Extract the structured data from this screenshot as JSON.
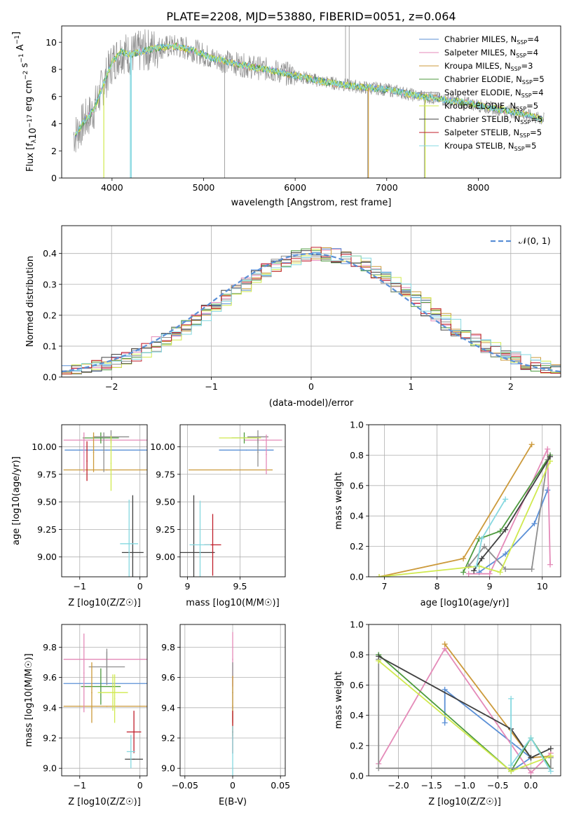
{
  "figure_title": "PLATE=2208, MJD=53880, FIBERID=0051, z=0.064",
  "series_colors": [
    "#5a8fd6",
    "#e48ab8",
    "#cc9a3b",
    "#4d9a3e",
    "#8e8e8e",
    "#d0e94e",
    "#404040",
    "#c01e2a",
    "#86d8e0"
  ],
  "legend_colors": [
    "#5a8fd6",
    "#e48ab8",
    "#cc9a3b",
    "#4d9a3e",
    "#8e8e8e",
    "#d0e94e",
    "#404040",
    "#c01e2a",
    "#86d8e0"
  ],
  "chart_data": [
    {
      "type": "line",
      "title": "PLATE=2208, MJD=53880, FIBERID=0051, z=0.064",
      "xlabel": "wavelength [Angstrom, rest frame]",
      "ylabel": "Flux [f_λ 10^-17 erg cm^-2 s^-1 A^-1]",
      "xlim": [
        3450,
        8900
      ],
      "ylim": [
        0,
        11.2
      ],
      "xticks": [
        4000,
        5000,
        6000,
        7000,
        8000
      ],
      "yticks": [
        0,
        2,
        4,
        6,
        8,
        10
      ],
      "grid": false,
      "legend_position": "top-right",
      "legend": [
        {
          "name": "Chabrier MILES, N",
          "sub": "SSP",
          "tail": "=4"
        },
        {
          "name": "Salpeter MILES, N",
          "sub": "SSP",
          "tail": "=4"
        },
        {
          "name": "Kroupa MILES, N",
          "sub": "SSP",
          "tail": "=3"
        },
        {
          "name": "Chabrier ELODIE, N",
          "sub": "SSP",
          "tail": "=5"
        },
        {
          "name": "Salpeter ELODIE, N",
          "sub": "SSP",
          "tail": "=4"
        },
        {
          "name": "Kroupa ELODIE, N",
          "sub": "SSP",
          "tail": "=5"
        },
        {
          "name": "Chabrier STELIB, N",
          "sub": "SSP",
          "tail": "=5"
        },
        {
          "name": "Salpeter STELIB, N",
          "sub": "SSP",
          "tail": "=5"
        },
        {
          "name": "Kroupa STELIB, N",
          "sub": "SSP",
          "tail": "=5"
        }
      ],
      "model_flux": {
        "x": [
          3600,
          3700,
          3800,
          3900,
          4000,
          4100,
          4200,
          4300,
          4500,
          4700,
          4900,
          5100,
          5300,
          5500,
          5700,
          5900,
          6100,
          6300,
          6500,
          6700,
          6900,
          7100,
          7300,
          7500,
          7700,
          7900,
          8100,
          8300,
          8500,
          8700
        ],
        "y": [
          3.2,
          4.2,
          5.0,
          6.8,
          8.5,
          9.3,
          9.1,
          9.3,
          9.6,
          9.7,
          9.4,
          8.8,
          8.5,
          8.2,
          8.0,
          7.7,
          7.4,
          7.1,
          6.9,
          6.7,
          6.6,
          6.4,
          6.1,
          5.9,
          5.7,
          5.5,
          5.2,
          5.0,
          4.7,
          4.3
        ]
      }
    },
    {
      "type": "line",
      "xlabel": "(data-model)/error",
      "ylabel": "Normed distribution",
      "xlim": [
        -2.5,
        2.5
      ],
      "ylim": [
        0,
        0.49
      ],
      "xticks": [
        -2,
        -1,
        0,
        1,
        2
      ],
      "yticks": [
        0.0,
        0.1,
        0.2,
        0.3,
        0.4
      ],
      "grid": true,
      "legend_position": "top-right",
      "reference_curve": {
        "name": "N(0,1)",
        "label_prefix": "𝒩(0, 1)"
      },
      "histogram_bin_width": 0.1
    },
    {
      "type": "scatter",
      "xlabel": "Z [log10(Z/Z☉)]",
      "ylabel": "age [log10(age/yr)]",
      "xlim": [
        -1.3,
        0.12
      ],
      "ylim": [
        8.82,
        10.2
      ],
      "xticks": [
        -1,
        0
      ],
      "yticks": [
        9.0,
        9.25,
        9.5,
        9.75,
        10.0
      ],
      "grid": true,
      "points": [
        {
          "x": -0.55,
          "xerr": 0.7,
          "y": 9.97,
          "yerr": 0.0,
          "series": 0
        },
        {
          "x": -0.55,
          "xerr": 0.72,
          "y": 10.06,
          "yerr": 0.0,
          "series": 1
        },
        {
          "x": -0.55,
          "xerr": 0.72,
          "y": 9.79,
          "yerr": 0.0,
          "series": 2
        },
        {
          "x": -0.65,
          "xerr": 0.3,
          "y": 10.08,
          "yerr": 0.05,
          "series": 3
        },
        {
          "x": -0.48,
          "xerr": 0.3,
          "y": 10.09,
          "yerr": 0.06,
          "series": 4
        },
        {
          "x": -0.48,
          "xerr": 0.0,
          "y": 9.85,
          "yerr": 0.25,
          "series": 5
        },
        {
          "x": -0.12,
          "xerr": 0.18,
          "y": 9.04,
          "yerr": 0.52,
          "series": 6
        },
        {
          "x": -0.88,
          "xerr": 0.0,
          "y": 9.87,
          "yerr": 0.18,
          "series": 7
        },
        {
          "x": -0.18,
          "xerr": 0.15,
          "y": 9.12,
          "yerr": 0.4,
          "series": 8
        },
        {
          "x": -0.6,
          "xerr": 0.0,
          "y": 9.95,
          "yerr": 0.18,
          "series": 4
        },
        {
          "x": -0.77,
          "xerr": 0.0,
          "y": 9.95,
          "yerr": 0.18,
          "series": 2
        },
        {
          "x": -0.93,
          "xerr": 0.0,
          "y": 9.95,
          "yerr": 0.18,
          "series": 1
        }
      ]
    },
    {
      "type": "scatter",
      "xlabel": "mass [log10(M/M☉)]",
      "xlim": [
        8.93,
        9.93
      ],
      "ylim": [
        8.82,
        10.2
      ],
      "xticks": [
        9.0,
        9.5
      ],
      "yticks": [
        9.0,
        9.25,
        9.5,
        9.75,
        10.0
      ],
      "grid": true,
      "points": [
        {
          "x": 9.56,
          "xerr": 0.26,
          "y": 9.97,
          "yerr": 0.0,
          "series": 0
        },
        {
          "x": 9.72,
          "xerr": 0.18,
          "y": 10.06,
          "yerr": 0.0,
          "series": 1
        },
        {
          "x": 9.41,
          "xerr": 0.4,
          "y": 9.79,
          "yerr": 0.0,
          "series": 2
        },
        {
          "x": 9.54,
          "xerr": 0.12,
          "y": 10.08,
          "yerr": 0.05,
          "series": 3
        },
        {
          "x": 9.67,
          "xerr": 0.1,
          "y": 10.09,
          "yerr": 0.06,
          "series": 4
        },
        {
          "x": 9.5,
          "xerr": 0.2,
          "y": 10.08,
          "yerr": 0.0,
          "series": 5
        },
        {
          "x": 9.06,
          "xerr": 0.2,
          "y": 9.04,
          "yerr": 0.52,
          "series": 6
        },
        {
          "x": 9.24,
          "xerr": 0.08,
          "y": 9.11,
          "yerr": 0.28,
          "series": 7
        },
        {
          "x": 9.12,
          "xerr": 0.1,
          "y": 9.11,
          "yerr": 0.4,
          "series": 8
        },
        {
          "x": 9.75,
          "xerr": 0.0,
          "y": 9.93,
          "yerr": 0.18,
          "series": 1
        },
        {
          "x": 9.67,
          "xerr": 0.0,
          "y": 9.95,
          "yerr": 0.13,
          "series": 4
        }
      ]
    },
    {
      "type": "line",
      "xlabel": "age [log10(age/yr)]",
      "ylabel": "mass weight",
      "xlim": [
        6.7,
        10.35
      ],
      "ylim": [
        0,
        1
      ],
      "xticks": [
        7,
        8,
        9,
        10
      ],
      "yticks": [
        0.0,
        0.2,
        0.4,
        0.6,
        0.8,
        1.0
      ],
      "grid": true,
      "series": [
        {
          "series": 0,
          "x": [
            8.8,
            9.3,
            9.85,
            10.1
          ],
          "y": [
            0.03,
            0.15,
            0.35,
            0.57
          ]
        },
        {
          "series": 1,
          "x": [
            8.6,
            9.0,
            10.1,
            10.15
          ],
          "y": [
            0.02,
            0.02,
            0.84,
            0.08
          ]
        },
        {
          "series": 2,
          "x": [
            6.9,
            8.5,
            9.8
          ],
          "y": [
            0.0,
            0.12,
            0.87
          ]
        },
        {
          "series": 3,
          "x": [
            8.5,
            8.8,
            9.2,
            10.15
          ],
          "y": [
            0.03,
            0.25,
            0.3,
            0.8
          ]
        },
        {
          "series": 4,
          "x": [
            8.6,
            8.9,
            9.3,
            9.8,
            10.1
          ],
          "y": [
            0.07,
            0.2,
            0.05,
            0.05,
            0.77
          ]
        },
        {
          "series": 5,
          "x": [
            6.9,
            8.8,
            9.2,
            10.15
          ],
          "y": [
            0.0,
            0.07,
            0.03,
            0.76
          ]
        },
        {
          "series": 6,
          "x": [
            8.7,
            8.85,
            9.3,
            10.15
          ],
          "y": [
            0.04,
            0.12,
            0.31,
            0.79
          ]
        },
        {
          "series": 8,
          "x": [
            8.75,
            8.85,
            9.3
          ],
          "y": [
            0.07,
            0.25,
            0.51
          ]
        }
      ]
    },
    {
      "type": "scatter",
      "xlabel": "Z [log10(Z/Z☉)]",
      "ylabel": "mass [log10(M/M☉)]",
      "xlim": [
        -1.3,
        0.12
      ],
      "ylim": [
        8.95,
        9.95
      ],
      "xticks": [
        -1,
        0
      ],
      "yticks": [
        9.0,
        9.2,
        9.4,
        9.6,
        9.8
      ],
      "grid": true,
      "points": [
        {
          "x": -0.55,
          "xerr": 0.72,
          "y": 9.56,
          "yerr": 0.0,
          "series": 0
        },
        {
          "x": -0.55,
          "xerr": 0.72,
          "y": 9.72,
          "yerr": 0.0,
          "series": 1
        },
        {
          "x": -0.55,
          "xerr": 0.72,
          "y": 9.41,
          "yerr": 0.0,
          "series": 2
        },
        {
          "x": -0.65,
          "xerr": 0.33,
          "y": 9.54,
          "yerr": 0.12,
          "series": 3
        },
        {
          "x": -0.55,
          "xerr": 0.3,
          "y": 9.67,
          "yerr": 0.1,
          "series": 4
        },
        {
          "x": -0.45,
          "xerr": 0.25,
          "y": 9.5,
          "yerr": 0.12,
          "series": 5
        },
        {
          "x": -0.1,
          "xerr": 0.15,
          "y": 9.06,
          "yerr": 0.0,
          "series": 6
        },
        {
          "x": -0.1,
          "xerr": 0.12,
          "y": 9.24,
          "yerr": 0.14,
          "series": 7
        },
        {
          "x": -0.15,
          "xerr": 0.07,
          "y": 9.11,
          "yerr": 0.11,
          "series": 8
        },
        {
          "x": -0.93,
          "xerr": 0.0,
          "y": 9.63,
          "yerr": 0.26,
          "series": 1
        },
        {
          "x": -0.8,
          "xerr": 0.0,
          "y": 9.5,
          "yerr": 0.2,
          "series": 2
        },
        {
          "x": -0.55,
          "xerr": 0.0,
          "y": 9.67,
          "yerr": 0.12,
          "series": 4
        },
        {
          "x": -0.42,
          "xerr": 0.0,
          "y": 9.46,
          "yerr": 0.16,
          "series": 5
        }
      ]
    },
    {
      "type": "scatter",
      "xlabel": "E(B-V)",
      "xlim": [
        -0.055,
        0.055
      ],
      "ylim": [
        8.95,
        9.95
      ],
      "xticks": [
        -0.05,
        0.0,
        0.05
      ],
      "yticks": [
        9.0,
        9.2,
        9.4,
        9.6,
        9.8
      ],
      "grid": true,
      "points": [
        {
          "x": 0.0,
          "xerr": 0.0,
          "y": 9.72,
          "yerr": 0.18,
          "series": 1
        },
        {
          "x": 0.0,
          "xerr": 0.0,
          "y": 9.5,
          "yerr": 0.2,
          "series": 4
        },
        {
          "x": 0.0,
          "xerr": 0.0,
          "y": 9.41,
          "yerr": 0.2,
          "series": 2
        },
        {
          "x": 0.0,
          "xerr": 0.0,
          "y": 9.24,
          "yerr": 0.14,
          "series": 7
        },
        {
          "x": 0.0,
          "xerr": 0.0,
          "y": 9.1,
          "yerr": 0.18,
          "series": 8
        }
      ]
    },
    {
      "type": "line",
      "xlabel": "Z [log10(Z/Z☉)]",
      "ylabel": "mass weight",
      "xlim": [
        -2.45,
        0.45
      ],
      "ylim": [
        0,
        1
      ],
      "xticks": [
        -2.0,
        -1.5,
        -1.0,
        -0.5,
        0.0
      ],
      "yticks": [
        0.0,
        0.2,
        0.4,
        0.6,
        0.8,
        1.0
      ],
      "grid": true,
      "series": [
        {
          "series": 0,
          "x": [
            -1.3,
            -1.3,
            0.0,
            -0.3
          ],
          "y": [
            0.35,
            0.57,
            0.12,
            0.03
          ]
        },
        {
          "series": 1,
          "x": [
            -2.3,
            -1.3,
            0.0,
            0.3
          ],
          "y": [
            0.08,
            0.84,
            0.02,
            0.15
          ]
        },
        {
          "series": 2,
          "x": [
            -1.3,
            0.0,
            0.3
          ],
          "y": [
            0.87,
            0.12,
            0.13
          ]
        },
        {
          "series": 3,
          "x": [
            -2.3,
            -0.3,
            0.0,
            0.3
          ],
          "y": [
            0.8,
            0.03,
            0.25,
            0.05
          ]
        },
        {
          "series": 4,
          "x": [
            -2.3,
            -2.3,
            0.3,
            0.3
          ],
          "y": [
            0.77,
            0.05,
            0.05,
            0.12
          ]
        },
        {
          "series": 5,
          "x": [
            -2.3,
            -0.3,
            0.3
          ],
          "y": [
            0.76,
            0.03,
            0.13
          ]
        },
        {
          "series": 6,
          "x": [
            -2.3,
            -0.3,
            0.0,
            0.3
          ],
          "y": [
            0.79,
            0.31,
            0.12,
            0.18
          ]
        },
        {
          "series": 8,
          "x": [
            -0.3,
            -0.3,
            0.0,
            0.3
          ],
          "y": [
            0.51,
            0.07,
            0.25,
            0.03
          ]
        }
      ]
    }
  ]
}
